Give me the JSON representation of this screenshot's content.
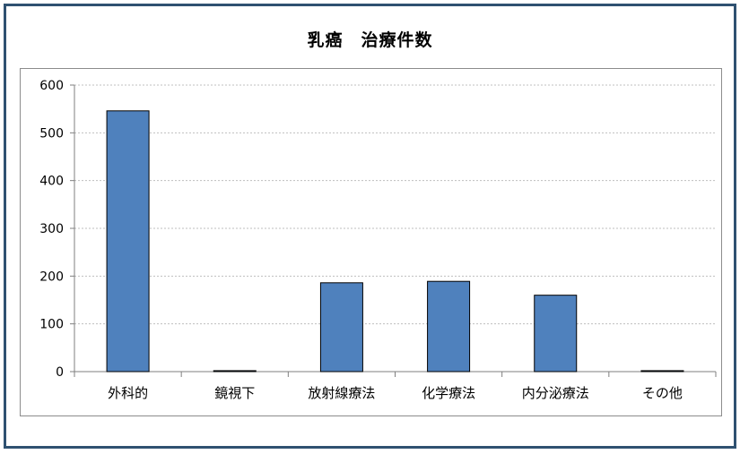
{
  "chart_data": {
    "type": "bar",
    "title": "乳癌　治療件数",
    "xlabel": "",
    "ylabel": "",
    "categories": [
      "外科的",
      "鏡視下",
      "放射線療法",
      "化学療法",
      "内分泌療法",
      "その他"
    ],
    "values": [
      546,
      2,
      186,
      189,
      160,
      2
    ],
    "ylim": [
      0,
      600
    ],
    "yticks": [
      0,
      100,
      200,
      300,
      400,
      500,
      600
    ],
    "grid": true,
    "legend": "none",
    "bar_color": "#4f81bd",
    "bar_border_color": "#000000",
    "grid_color": "#bfbfbf"
  },
  "colors": {
    "frame": "#2f5171",
    "plot_border": "#8c8c8c"
  }
}
